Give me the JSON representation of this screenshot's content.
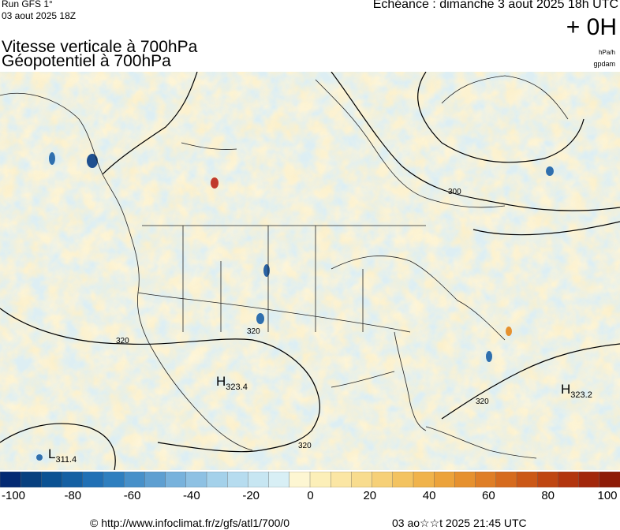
{
  "header": {
    "run_label": "Run GFS 1°",
    "run_date": "03 aout 2025 18Z",
    "valid_label": "Echéance : dimanche 3 aout 2025 18h UTC",
    "lead_time": "+ 0H",
    "title_line1": "Vitesse verticale à 700hPa",
    "title_line2": "Géopotentiel à 700hPa",
    "unit_1": "hPa/h",
    "unit_2": "gpdam"
  },
  "map": {
    "contour_labels": [
      "300",
      "320",
      "320",
      "320",
      "320"
    ],
    "pressure_centers": [
      {
        "type": "H",
        "value": "323.4"
      },
      {
        "type": "H",
        "value": "323.2"
      },
      {
        "type": "L",
        "value": "311.4"
      }
    ]
  },
  "legend": {
    "tick_labels": [
      "-100",
      "-80",
      "-60",
      "-40",
      "-20",
      "0",
      "20",
      "40",
      "60",
      "80",
      "100"
    ],
    "colors": [
      "#042a73",
      "#08407f",
      "#0b5293",
      "#1560a3",
      "#2170b5",
      "#2f7fbf",
      "#4790c9",
      "#5e9fd1",
      "#78b2dc",
      "#8ec1e3",
      "#a4d1ea",
      "#b6dcef",
      "#c7e6f2",
      "#d8eff5",
      "#fdf6d2",
      "#fcefb8",
      "#fbe6a4",
      "#f8dc8e",
      "#f6d077",
      "#f3c360",
      "#f0b34b",
      "#eca33b",
      "#e6912f",
      "#df7e26",
      "#d66b1e",
      "#cb5817",
      "#bf4612",
      "#b2350e",
      "#a2270b",
      "#8e1c08"
    ]
  },
  "footer": {
    "credit": "© http://www.infoclimat.fr/z/gfs/atl1/700/0",
    "timestamp": "03 ao☆☆t 2025 21:45 UTC"
  }
}
